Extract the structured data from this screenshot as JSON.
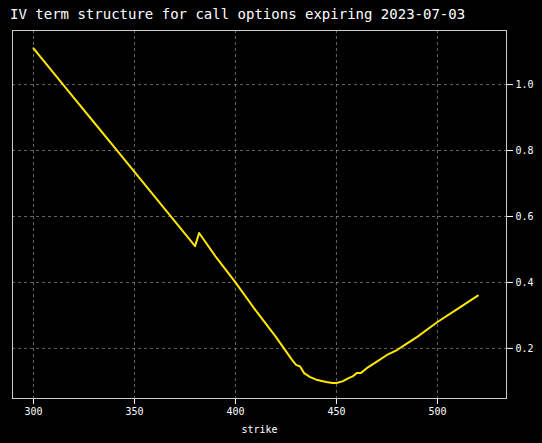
{
  "chart_data": {
    "type": "line",
    "title": "IV term structure for call options expiring 2023-07-03",
    "x_label": "strike",
    "x": [
      300,
      310,
      320,
      330,
      340,
      350,
      360,
      370,
      380,
      382,
      390,
      400,
      410,
      420,
      428,
      430,
      432,
      434,
      437,
      440,
      445,
      448,
      450,
      453,
      456,
      458,
      460,
      462,
      465,
      470,
      475,
      480,
      485,
      490,
      500,
      510,
      520
    ],
    "values": [
      1.11,
      1.035,
      0.96,
      0.885,
      0.81,
      0.735,
      0.66,
      0.585,
      0.51,
      0.55,
      0.48,
      0.4,
      0.315,
      0.235,
      0.165,
      0.15,
      0.145,
      0.125,
      0.113,
      0.105,
      0.098,
      0.095,
      0.095,
      0.1,
      0.11,
      0.115,
      0.125,
      0.125,
      0.14,
      0.16,
      0.18,
      0.195,
      0.215,
      0.235,
      0.28,
      0.32,
      0.36
    ],
    "color": "#ffe800",
    "xlim": [
      289.6,
      534.2
    ],
    "ylim": [
      0.048,
      1.164
    ],
    "xticks": [
      300,
      350,
      400,
      450,
      500
    ],
    "yticks": [
      0.2,
      0.4,
      0.6,
      0.8,
      {
        "value": 1,
        "label": "1.0"
      }
    ],
    "grid": true
  }
}
